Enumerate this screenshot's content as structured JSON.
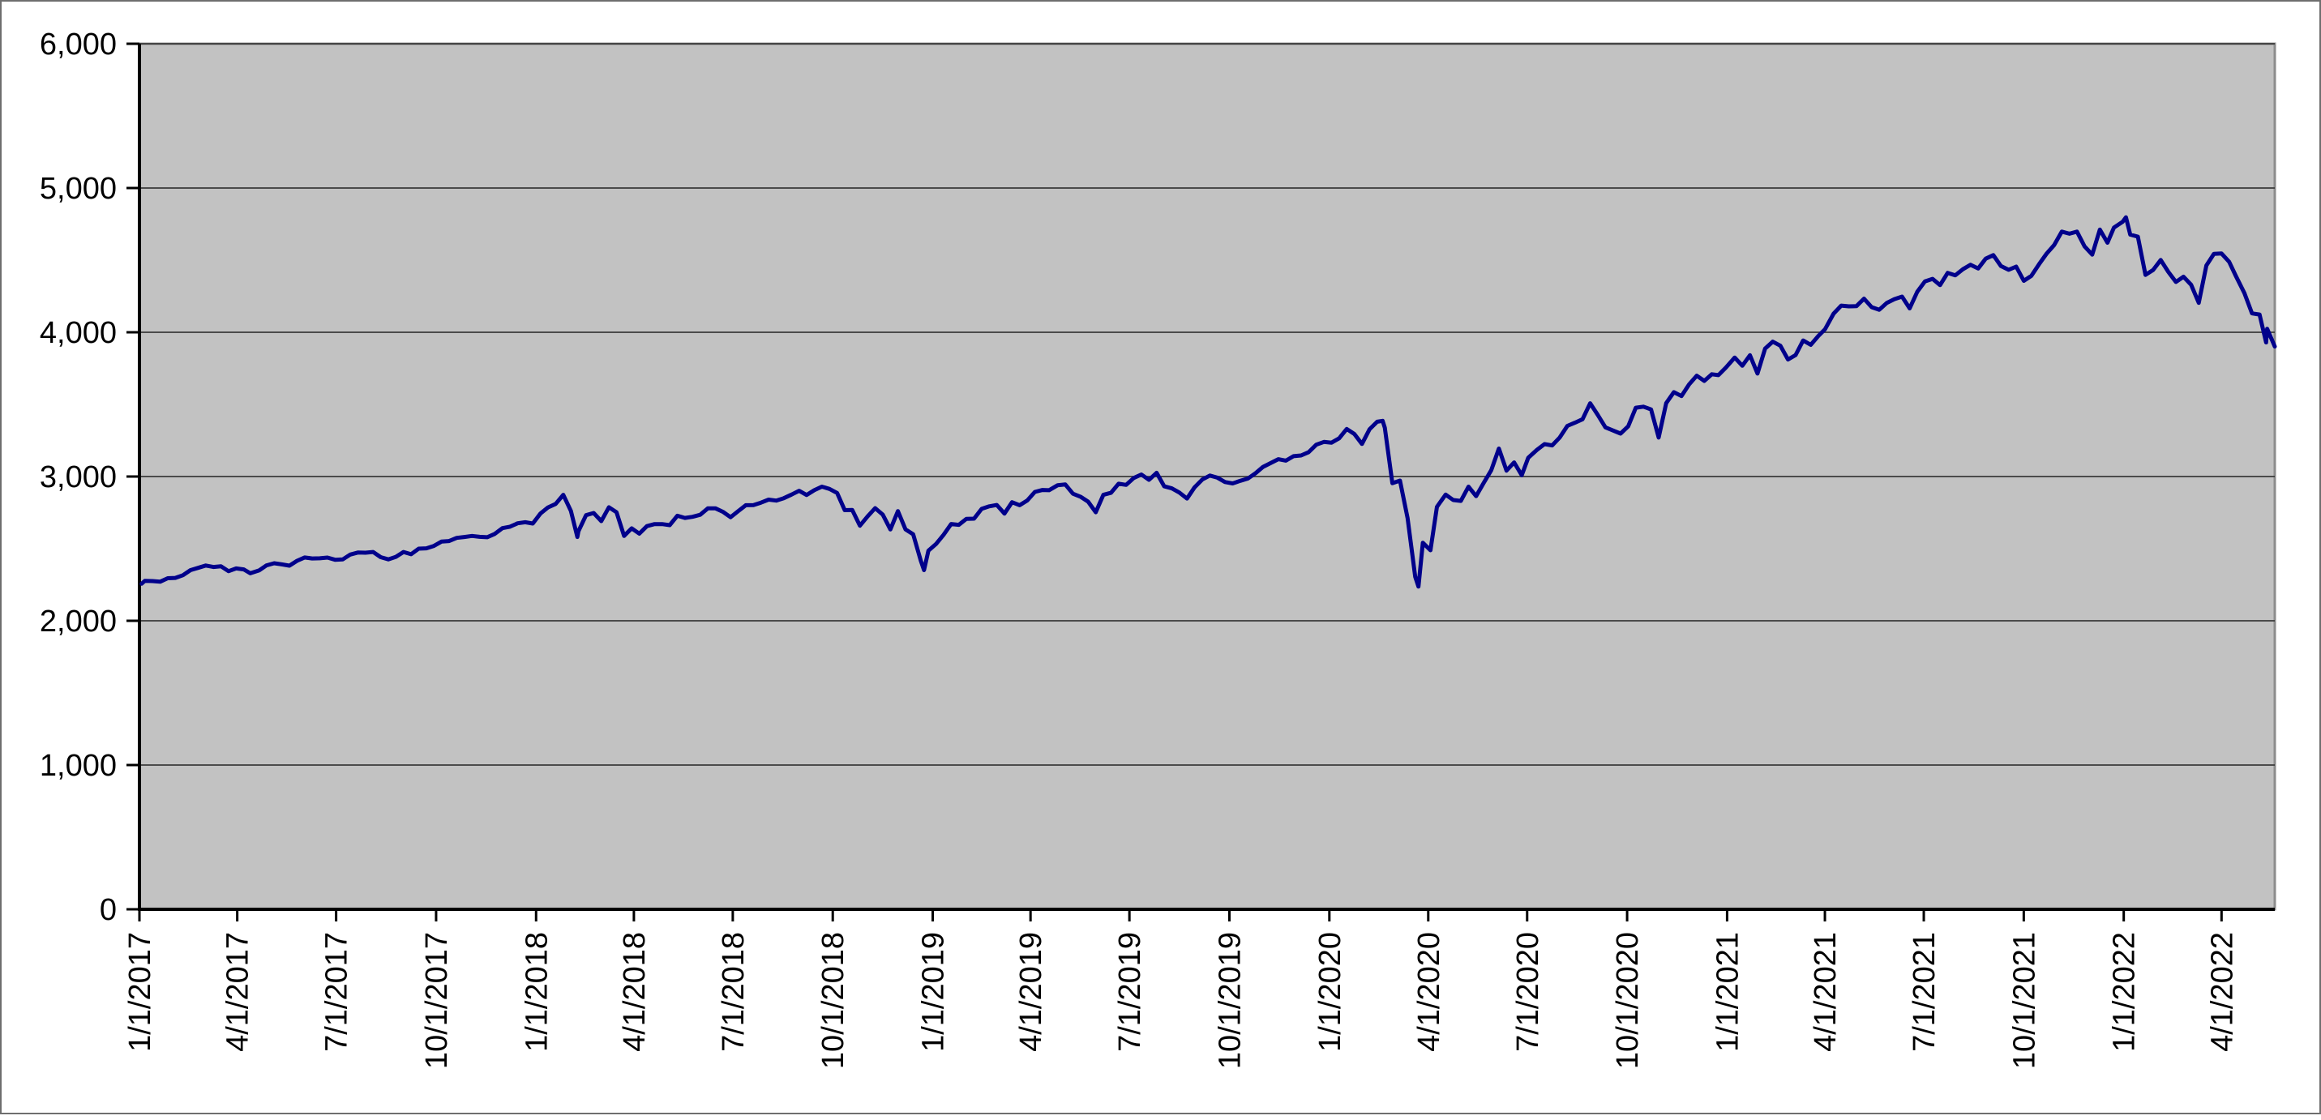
{
  "chart_data": {
    "type": "line",
    "title": "",
    "legend": "none",
    "grid": "horizontal-major",
    "plot_bg_color": "#c2c2c2",
    "plot_border_color": "#8c8c8c",
    "grid_color": "#3a3a3a",
    "axis_color": "#000000",
    "line_color": "#00008b",
    "y_axis": {
      "min": 0,
      "max": 6000,
      "step": 1000,
      "tick_labels": [
        "0",
        "1,000",
        "2,000",
        "3,000",
        "4,000",
        "5,000",
        "6,000"
      ]
    },
    "x_axis": {
      "tick_labels": [
        "1/1/2017",
        "4/1/2017",
        "7/1/2017",
        "10/1/2017",
        "1/1/2018",
        "4/1/2018",
        "7/1/2018",
        "10/1/2018",
        "1/1/2019",
        "4/1/2019",
        "7/1/2019",
        "10/1/2019",
        "1/1/2020",
        "4/1/2020",
        "7/1/2020",
        "10/1/2020",
        "1/1/2021",
        "4/1/2021",
        "7/1/2021",
        "10/1/2021",
        "1/1/2022",
        "4/1/2022"
      ],
      "range_start_date": "1/1/2017"
    },
    "series": [
      {
        "dates": [
          "1/3/2017",
          "1/6/2017",
          "1/13/2017",
          "1/20/2017",
          "1/27/2017",
          "2/3/2017",
          "2/10/2017",
          "2/17/2017",
          "2/24/2017",
          "3/3/2017",
          "3/10/2017",
          "3/17/2017",
          "3/24/2017",
          "3/31/2017",
          "4/7/2017",
          "4/13/2017",
          "4/21/2017",
          "4/28/2017",
          "5/5/2017",
          "5/12/2017",
          "5/19/2017",
          "5/26/2017",
          "6/2/2017",
          "6/9/2017",
          "6/16/2017",
          "6/23/2017",
          "6/30/2017",
          "7/7/2017",
          "7/14/2017",
          "7/21/2017",
          "7/28/2017",
          "8/4/2017",
          "8/11/2017",
          "8/18/2017",
          "8/25/2017",
          "9/1/2017",
          "9/8/2017",
          "9/15/2017",
          "9/22/2017",
          "9/29/2017",
          "10/6/2017",
          "10/13/2017",
          "10/20/2017",
          "10/27/2017",
          "11/3/2017",
          "11/10/2017",
          "11/17/2017",
          "11/24/2017",
          "12/1/2017",
          "12/8/2017",
          "12/15/2017",
          "12/22/2017",
          "12/29/2017",
          "1/5/2018",
          "1/12/2018",
          "1/19/2018",
          "1/26/2018",
          "2/2/2018",
          "2/8/2018",
          "2/9/2018",
          "2/16/2018",
          "2/23/2018",
          "3/2/2018",
          "3/9/2018",
          "3/16/2018",
          "3/23/2018",
          "3/30/2018",
          "4/6/2018",
          "4/13/2018",
          "4/20/2018",
          "4/27/2018",
          "5/4/2018",
          "5/11/2018",
          "5/18/2018",
          "5/25/2018",
          "6/1/2018",
          "6/8/2018",
          "6/15/2018",
          "6/22/2018",
          "6/29/2018",
          "7/6/2018",
          "7/13/2018",
          "7/20/2018",
          "7/27/2018",
          "8/3/2018",
          "8/10/2018",
          "8/17/2018",
          "8/24/2018",
          "8/31/2018",
          "9/7/2018",
          "9/14/2018",
          "9/21/2018",
          "9/28/2018",
          "10/5/2018",
          "10/12/2018",
          "10/19/2018",
          "10/26/2018",
          "11/2/2018",
          "11/9/2018",
          "11/16/2018",
          "11/23/2018",
          "11/30/2018",
          "12/7/2018",
          "12/14/2018",
          "12/21/2018",
          "12/24/2018",
          "12/28/2018",
          "1/4/2019",
          "1/11/2019",
          "1/18/2019",
          "1/25/2019",
          "2/1/2019",
          "2/8/2019",
          "2/15/2019",
          "2/22/2019",
          "3/1/2019",
          "3/8/2019",
          "3/15/2019",
          "3/22/2019",
          "3/29/2019",
          "4/5/2019",
          "4/12/2019",
          "4/18/2019",
          "4/26/2019",
          "5/3/2019",
          "5/10/2019",
          "5/17/2019",
          "5/24/2019",
          "5/31/2019",
          "6/7/2019",
          "6/14/2019",
          "6/21/2019",
          "6/28/2019",
          "7/5/2019",
          "7/12/2019",
          "7/19/2019",
          "7/26/2019",
          "8/2/2019",
          "8/9/2019",
          "8/16/2019",
          "8/23/2019",
          "8/30/2019",
          "9/6/2019",
          "9/13/2019",
          "9/20/2019",
          "9/27/2019",
          "10/4/2019",
          "10/11/2019",
          "10/18/2019",
          "10/25/2019",
          "11/1/2019",
          "11/8/2019",
          "11/15/2019",
          "11/22/2019",
          "11/29/2019",
          "12/6/2019",
          "12/13/2019",
          "12/20/2019",
          "12/27/2019",
          "1/3/2020",
          "1/10/2020",
          "1/17/2020",
          "1/24/2020",
          "1/31/2020",
          "2/7/2020",
          "2/14/2020",
          "2/19/2020",
          "2/21/2020",
          "2/28/2020",
          "3/6/2020",
          "3/13/2020",
          "3/20/2020",
          "3/23/2020",
          "3/27/2020",
          "4/3/2020",
          "4/9/2020",
          "4/17/2020",
          "4/24/2020",
          "5/1/2020",
          "5/8/2020",
          "5/15/2020",
          "5/22/2020",
          "5/29/2020",
          "6/5/2020",
          "6/12/2020",
          "6/19/2020",
          "6/26/2020",
          "7/2/2020",
          "7/10/2020",
          "7/17/2020",
          "7/24/2020",
          "7/31/2020",
          "8/7/2020",
          "8/14/2020",
          "8/21/2020",
          "8/28/2020",
          "9/4/2020",
          "9/11/2020",
          "9/18/2020",
          "9/25/2020",
          "10/2/2020",
          "10/9/2020",
          "10/16/2020",
          "10/23/2020",
          "10/30/2020",
          "11/6/2020",
          "11/13/2020",
          "11/20/2020",
          "11/27/2020",
          "12/4/2020",
          "12/11/2020",
          "12/18/2020",
          "12/24/2020",
          "12/31/2020",
          "1/8/2021",
          "1/15/2021",
          "1/22/2021",
          "1/29/2021",
          "2/5/2021",
          "2/12/2021",
          "2/19/2021",
          "2/26/2021",
          "3/5/2021",
          "3/12/2021",
          "3/19/2021",
          "3/26/2021",
          "4/1/2021",
          "4/9/2021",
          "4/16/2021",
          "4/23/2021",
          "4/30/2021",
          "5/7/2021",
          "5/14/2021",
          "5/21/2021",
          "5/28/2021",
          "6/4/2021",
          "6/11/2021",
          "6/18/2021",
          "6/25/2021",
          "7/2/2021",
          "7/9/2021",
          "7/16/2021",
          "7/23/2021",
          "7/30/2021",
          "8/6/2021",
          "8/13/2021",
          "8/20/2021",
          "8/27/2021",
          "9/3/2021",
          "9/10/2021",
          "9/17/2021",
          "9/24/2021",
          "10/1/2021",
          "10/8/2021",
          "10/15/2021",
          "10/22/2021",
          "10/29/2021",
          "11/5/2021",
          "11/12/2021",
          "11/19/2021",
          "11/26/2021",
          "12/3/2021",
          "12/10/2021",
          "12/17/2021",
          "12/23/2021",
          "12/31/2021",
          "1/3/2022",
          "1/7/2022",
          "1/14/2022",
          "1/21/2022",
          "1/28/2022",
          "2/4/2022",
          "2/11/2022",
          "2/18/2022",
          "2/25/2022",
          "3/4/2022",
          "3/11/2022",
          "3/18/2022",
          "3/25/2022",
          "4/1/2022",
          "4/8/2022",
          "4/14/2022",
          "4/22/2022",
          "4/29/2022",
          "5/6/2022",
          "5/12/2022",
          "5/13/2022",
          "5/20/2022"
        ],
        "values": [
          2257,
          2277,
          2275,
          2271,
          2295,
          2297,
          2316,
          2351,
          2367,
          2383,
          2373,
          2378,
          2344,
          2363,
          2356,
          2329,
          2349,
          2384,
          2399,
          2391,
          2382,
          2416,
          2439,
          2432,
          2433,
          2438,
          2423,
          2425,
          2459,
          2473,
          2472,
          2477,
          2441,
          2426,
          2443,
          2477,
          2461,
          2500,
          2502,
          2519,
          2549,
          2553,
          2575,
          2581,
          2588,
          2582,
          2579,
          2602,
          2642,
          2652,
          2676,
          2683,
          2674,
          2743,
          2786,
          2810,
          2873,
          2762,
          2581,
          2620,
          2732,
          2747,
          2691,
          2787,
          2752,
          2588,
          2641,
          2604,
          2656,
          2670,
          2670,
          2663,
          2728,
          2713,
          2721,
          2735,
          2779,
          2780,
          2755,
          2718,
          2760,
          2801,
          2802,
          2819,
          2840,
          2833,
          2850,
          2875,
          2901,
          2872,
          2905,
          2930,
          2914,
          2886,
          2767,
          2768,
          2659,
          2723,
          2781,
          2736,
          2633,
          2760,
          2633,
          2600,
          2417,
          2351,
          2486,
          2532,
          2596,
          2671,
          2665,
          2707,
          2708,
          2776,
          2793,
          2803,
          2743,
          2822,
          2801,
          2834,
          2893,
          2907,
          2905,
          2940,
          2945,
          2881,
          2860,
          2826,
          2752,
          2873,
          2887,
          2950,
          2942,
          2990,
          3014,
          2977,
          3026,
          2932,
          2918,
          2889,
          2847,
          2926,
          2979,
          3007,
          2992,
          2962,
          2952,
          2970,
          2986,
          3023,
          3067,
          3093,
          3120,
          3110,
          3141,
          3146,
          3169,
          3221,
          3240,
          3235,
          3265,
          3330,
          3295,
          3226,
          3328,
          3380,
          3386,
          3338,
          2954,
          2972,
          2711,
          2305,
          2237,
          2541,
          2489,
          2790,
          2875,
          2837,
          2831,
          2930,
          2864,
          2955,
          3044,
          3194,
          3041,
          3098,
          3009,
          3130,
          3185,
          3225,
          3216,
          3271,
          3351,
          3373,
          3397,
          3508,
          3427,
          3341,
          3319,
          3298,
          3348,
          3477,
          3484,
          3465,
          3270,
          3509,
          3585,
          3558,
          3638,
          3699,
          3663,
          3709,
          3703,
          3756,
          3825,
          3768,
          3841,
          3714,
          3887,
          3935,
          3907,
          3811,
          3842,
          3943,
          3913,
          3975,
          4020,
          4129,
          4185,
          4180,
          4181,
          4233,
          4174,
          4156,
          4204,
          4230,
          4247,
          4166,
          4281,
          4352,
          4370,
          4327,
          4412,
          4395,
          4437,
          4468,
          4442,
          4510,
          4535,
          4459,
          4433,
          4455,
          4357,
          4391,
          4471,
          4545,
          4605,
          4698,
          4683,
          4698,
          4595,
          4538,
          4712,
          4621,
          4726,
          4766,
          4797,
          4677,
          4663,
          4398,
          4432,
          4501,
          4419,
          4349,
          4385,
          4329,
          4204,
          4463,
          4543,
          4546,
          4488,
          4393,
          4272,
          4131,
          4123,
          3930,
          4024,
          3901
        ]
      }
    ]
  }
}
